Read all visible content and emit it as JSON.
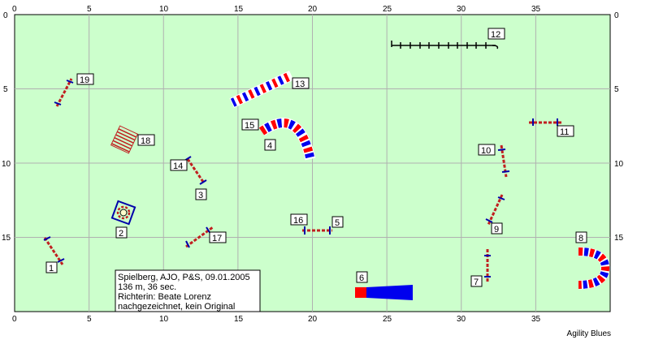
{
  "axes": {
    "x_ticks": [
      "0",
      "5",
      "10",
      "15",
      "20",
      "25",
      "30",
      "35"
    ],
    "y_ticks": [
      "0",
      "5",
      "10",
      "15"
    ]
  },
  "colors": {
    "field": "#ccffcc",
    "grid": "#b0b0b0",
    "red": "#ff0000",
    "blue": "#0000ee",
    "pole": "#c02020"
  },
  "info": {
    "line1": "Spielberg, AJO, P&S, 09.01.2005",
    "line2": "136 m, 36 sec.",
    "line3": "Richterin: Beate Lorenz",
    "line4": "nachgezeichnet, kein Original"
  },
  "brand": "Agility Blues",
  "obstacles": [
    {
      "id": "1",
      "label": "1"
    },
    {
      "id": "2",
      "label": "2"
    },
    {
      "id": "3",
      "label": "3"
    },
    {
      "id": "4",
      "label": "4"
    },
    {
      "id": "5",
      "label": "5"
    },
    {
      "id": "6",
      "label": "6"
    },
    {
      "id": "7",
      "label": "7"
    },
    {
      "id": "8",
      "label": "8"
    },
    {
      "id": "9",
      "label": "9"
    },
    {
      "id": "10",
      "label": "10"
    },
    {
      "id": "11",
      "label": "11"
    },
    {
      "id": "12",
      "label": "12"
    },
    {
      "id": "13",
      "label": "13"
    },
    {
      "id": "14",
      "label": "14"
    },
    {
      "id": "15",
      "label": "15"
    },
    {
      "id": "16",
      "label": "16"
    },
    {
      "id": "17",
      "label": "17"
    },
    {
      "id": "18",
      "label": "18"
    },
    {
      "id": "19",
      "label": "19"
    }
  ]
}
